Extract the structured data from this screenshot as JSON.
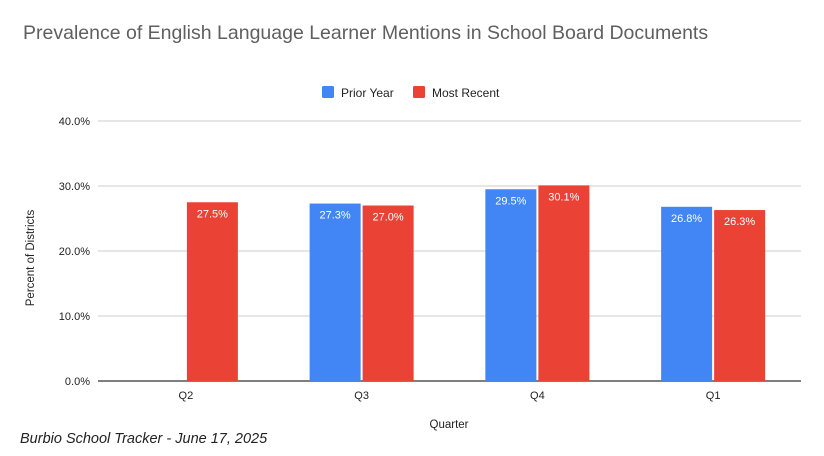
{
  "title": "Prevalence of English Language Learner Mentions in School Board Documents",
  "source": "Burbio School Tracker - June 17, 2025",
  "chart_data": {
    "type": "bar",
    "title": "Prevalence of English Language Learner Mentions in School Board Documents",
    "xlabel": "Quarter",
    "ylabel": "Percent of Districts",
    "categories": [
      "Q2",
      "Q3",
      "Q4",
      "Q1"
    ],
    "series": [
      {
        "name": "Prior Year",
        "color": "#4285f4",
        "values": [
          null,
          27.3,
          29.5,
          26.8
        ],
        "labels": [
          "",
          "27.3%",
          "29.5%",
          "26.8%"
        ]
      },
      {
        "name": "Most Recent",
        "color": "#ea4335",
        "values": [
          27.5,
          27.0,
          30.1,
          26.3
        ],
        "labels": [
          "27.5%",
          "27.0%",
          "30.1%",
          "26.3%"
        ]
      }
    ],
    "ylim": [
      0,
      40
    ],
    "yticks": [
      0,
      10,
      20,
      30,
      40
    ],
    "ytick_labels": [
      "0.0%",
      "10.0%",
      "20.0%",
      "30.0%",
      "40.0%"
    ],
    "grid": true,
    "legend_position": "top-center"
  }
}
